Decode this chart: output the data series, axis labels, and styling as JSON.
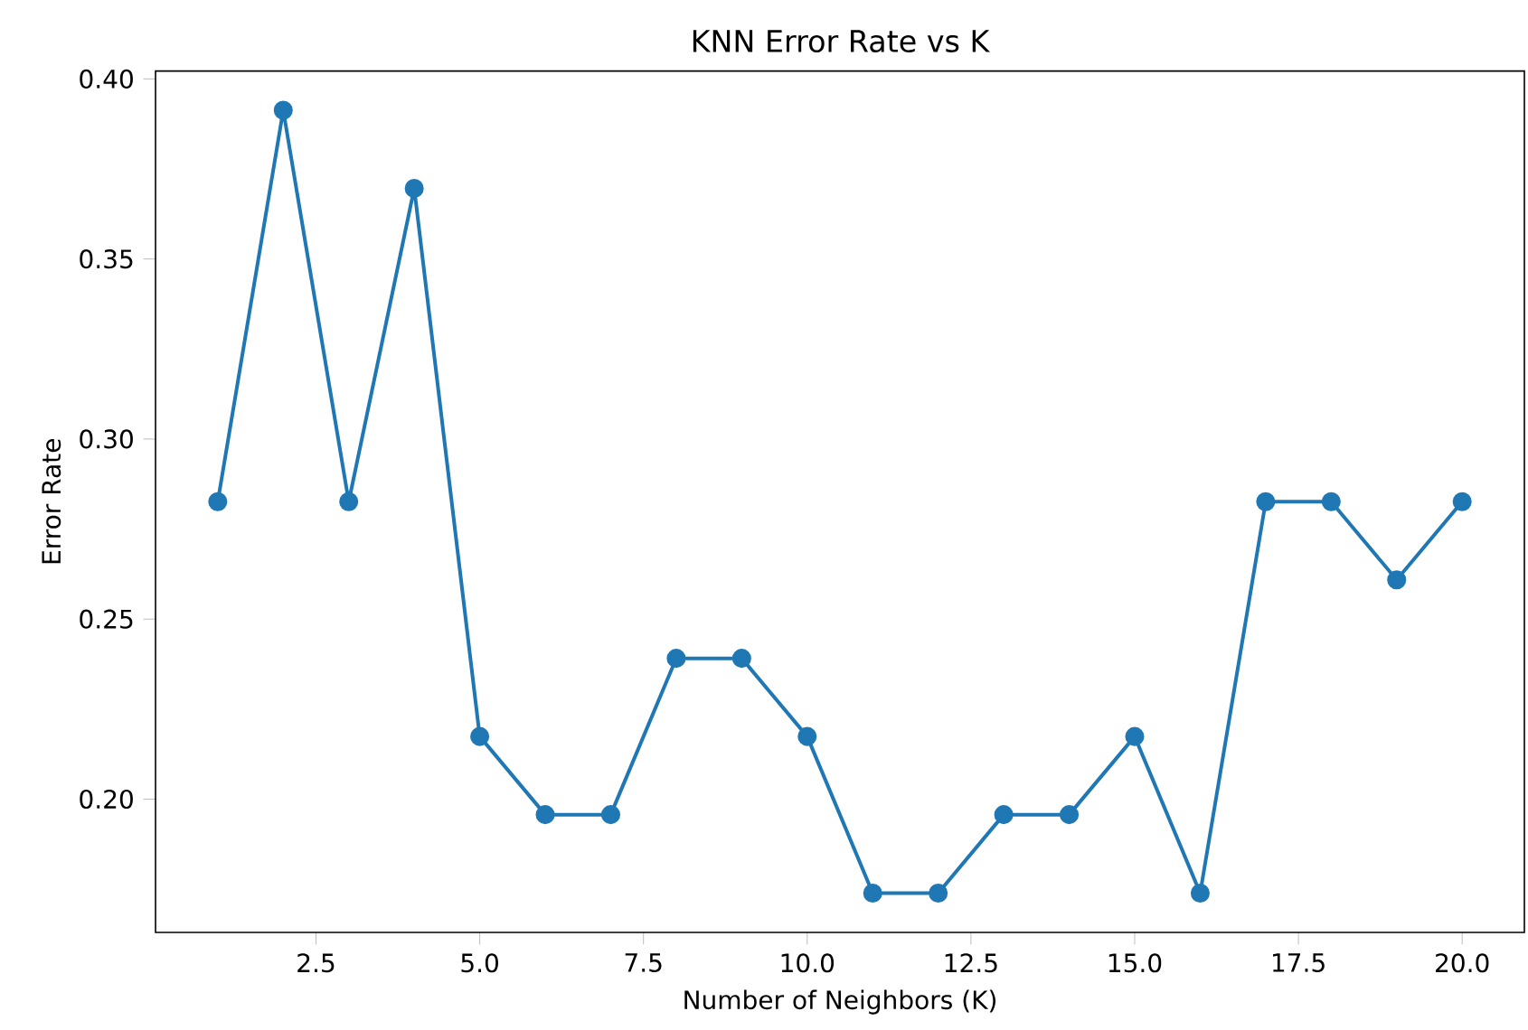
{
  "chart_data": {
    "type": "line",
    "title": "KNN Error Rate vs K",
    "xlabel": "Number of Neighbors (K)",
    "ylabel": "Error Rate",
    "x": [
      1,
      2,
      3,
      4,
      5,
      6,
      7,
      8,
      9,
      10,
      11,
      12,
      13,
      14,
      15,
      16,
      17,
      18,
      19,
      20
    ],
    "series": [
      {
        "color": "#1f77b4",
        "values": [
          0.2826,
          0.3913,
          0.2826,
          0.3696,
          0.2174,
          0.1957,
          0.1957,
          0.2391,
          0.2391,
          0.2174,
          0.1739,
          0.1739,
          0.1957,
          0.1957,
          0.2174,
          0.1739,
          0.2826,
          0.2826,
          0.2609,
          0.2826
        ]
      }
    ],
    "xlim": [
      0.05,
      20.95
    ],
    "ylim": [
      0.163,
      0.4022
    ],
    "xticks": [
      {
        "value": 2.5,
        "label": "2.5"
      },
      {
        "value": 5,
        "label": "5.0"
      },
      {
        "value": 7.5,
        "label": "7.5"
      },
      {
        "value": 10,
        "label": "10.0"
      },
      {
        "value": 12.5,
        "label": "12.5"
      },
      {
        "value": 15,
        "label": "15.0"
      },
      {
        "value": 17.5,
        "label": "17.5"
      },
      {
        "value": 20,
        "label": "20.0"
      }
    ],
    "yticks": [
      {
        "value": 0.2,
        "label": "0.20"
      },
      {
        "value": 0.25,
        "label": "0.25"
      },
      {
        "value": 0.3,
        "label": "0.30"
      },
      {
        "value": 0.35,
        "label": "0.35"
      },
      {
        "value": 0.4,
        "label": "0.40"
      }
    ],
    "marker": "circle",
    "line_style": "solid",
    "grid": false
  }
}
